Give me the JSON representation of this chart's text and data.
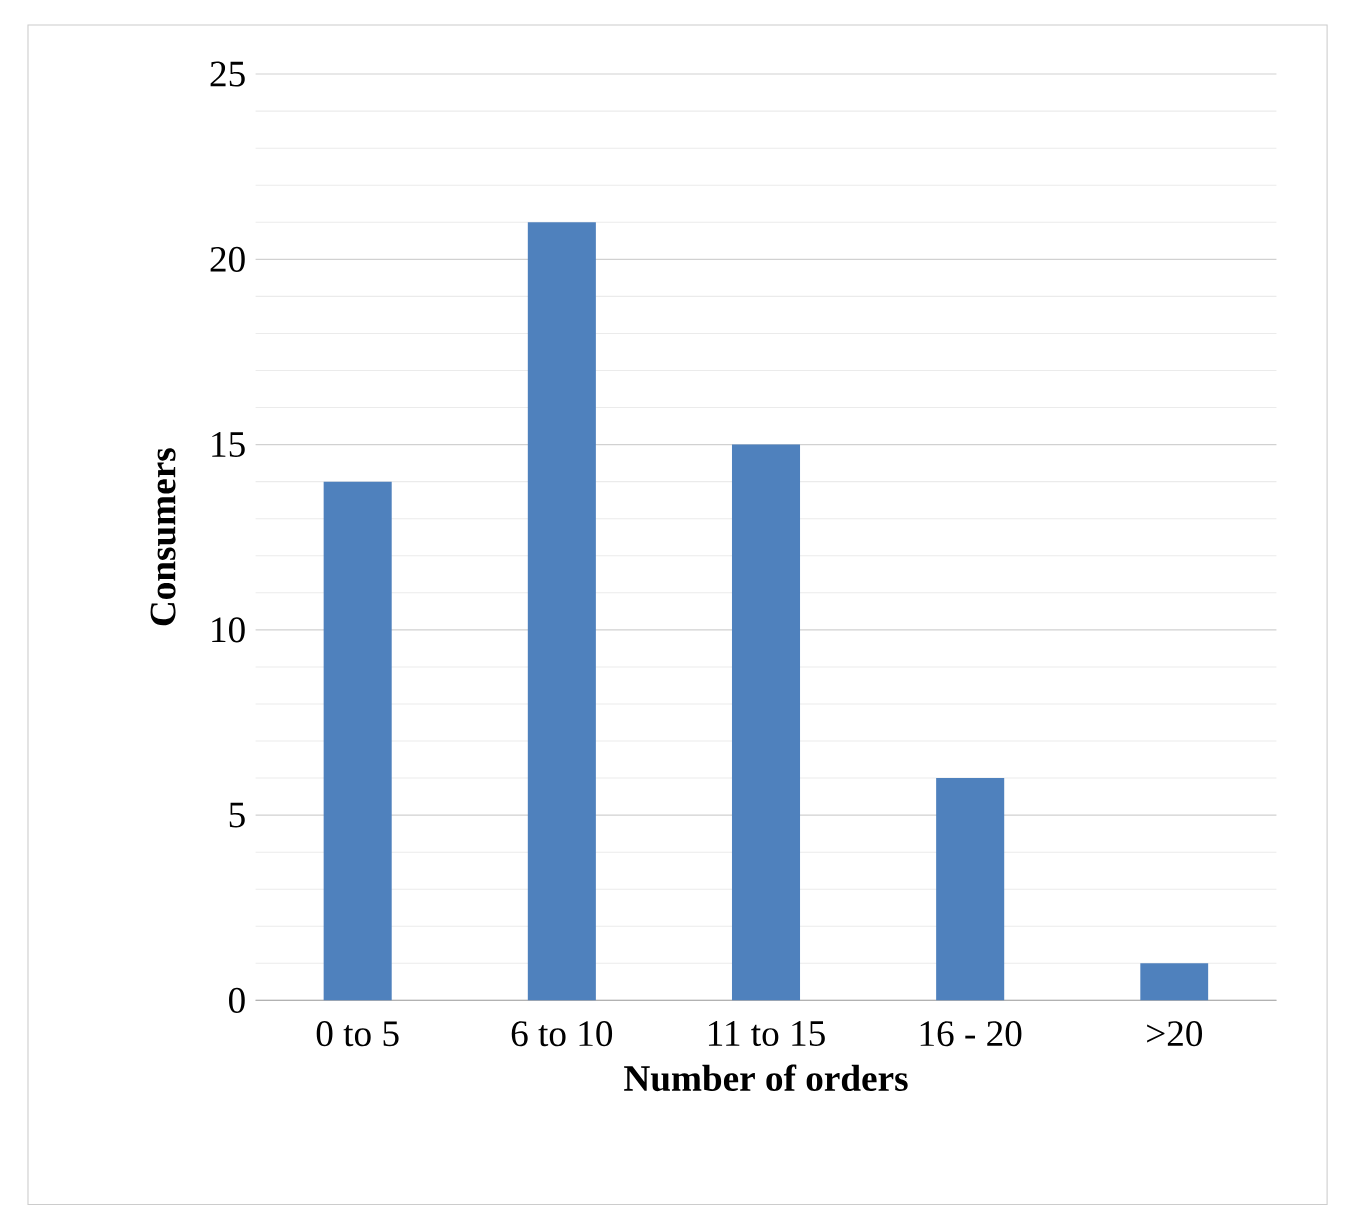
{
  "chart_data": {
    "type": "bar",
    "categories": [
      "0 to 5",
      "6 to 10",
      "11 to 15",
      "16 - 20",
      ">20"
    ],
    "values": [
      14,
      21,
      15,
      6,
      1
    ],
    "color": "#4f81bd",
    "xlabel": "Number of orders",
    "ylabel": "Consumers",
    "ylim": [
      0,
      25
    ],
    "yticks": [
      0,
      5,
      10,
      15,
      20,
      25
    ],
    "grid": "y"
  }
}
